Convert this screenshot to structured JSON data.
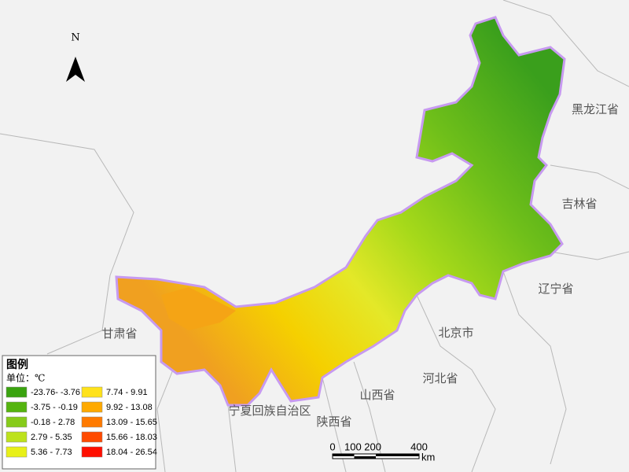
{
  "north": "N",
  "provinces": [
    "黑龙江省",
    "吉林省",
    "辽宁省",
    "北京市",
    "河北省",
    "山西省",
    "陕西省",
    "宁夏回族自治区",
    "甘肃省"
  ],
  "legend": {
    "title": "图例",
    "unit": "单位：℃",
    "items": [
      {
        "label": "-23.76- -3.76",
        "color": "#3aa30f"
      },
      {
        "label": "-3.75 - -0.19",
        "color": "#55b40f"
      },
      {
        "label": "-0.18 - 2.78",
        "color": "#86cb1a"
      },
      {
        "label": "2.79 - 5.35",
        "color": "#bde21c"
      },
      {
        "label": "5.36 - 7.73",
        "color": "#e8f018"
      },
      {
        "label": "7.74 - 9.91",
        "color": "#ffe21a"
      },
      {
        "label": "9.92 - 13.08",
        "color": "#ffaa00"
      },
      {
        "label": "13.09 - 15.65",
        "color": "#ff7a00"
      },
      {
        "label": "15.66 - 18.03",
        "color": "#ff4a00"
      },
      {
        "label": "18.04 - 26.54",
        "color": "#ff0f00"
      }
    ]
  },
  "scale": {
    "labels": [
      "0",
      "100 200",
      "400"
    ],
    "unit": "km"
  }
}
